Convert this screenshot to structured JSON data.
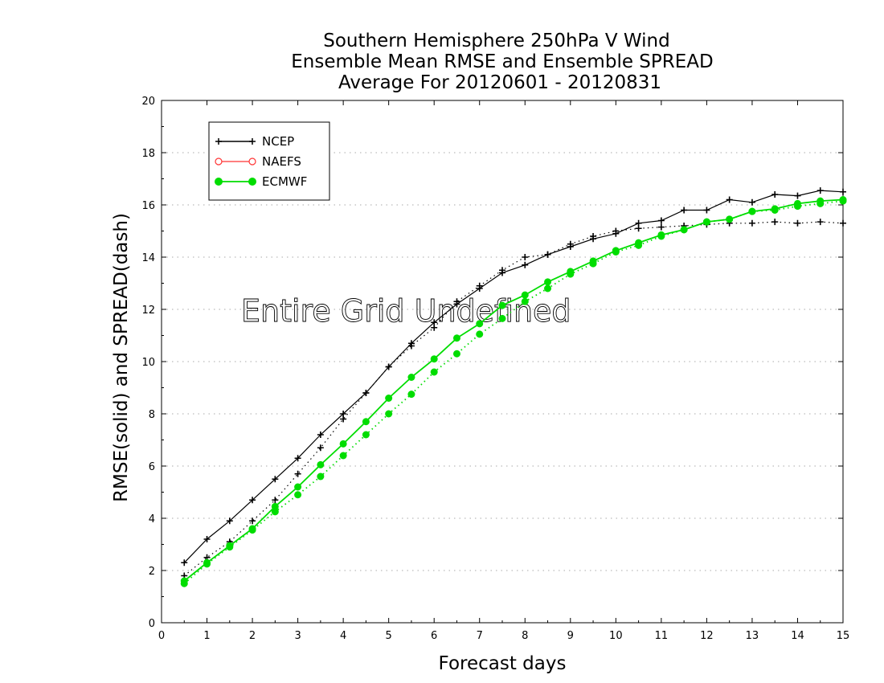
{
  "chart_data": {
    "type": "line",
    "title": [
      "Southern Hemisphere 250hPa V Wind",
      "Ensemble Mean RMSE and Ensemble SPREAD",
      "Average For 20120601 - 20120831"
    ],
    "xlabel": "Forecast days",
    "ylabel": "RMSE(solid) and SPREAD(dash)",
    "xlim": [
      0,
      15
    ],
    "ylim": [
      0,
      20
    ],
    "xticks": [
      0,
      1,
      2,
      3,
      4,
      5,
      6,
      7,
      8,
      9,
      10,
      11,
      12,
      13,
      14,
      15
    ],
    "yticks": [
      0,
      2,
      4,
      6,
      8,
      10,
      12,
      14,
      16,
      18,
      20
    ],
    "grid": "horizontal dotted",
    "legend_position": "top-left",
    "annotation": "Entire Grid Undefined",
    "x": [
      0.5,
      1,
      1.5,
      2,
      2.5,
      3,
      3.5,
      4,
      4.5,
      5,
      5.5,
      6,
      6.5,
      7,
      7.5,
      8,
      8.5,
      9,
      9.5,
      10,
      10.5,
      11,
      11.5,
      12,
      12.5,
      13,
      13.5,
      14,
      14.5,
      15
    ],
    "series": [
      {
        "name": "NCEP",
        "color": "#000000",
        "marker": "plus",
        "rmse": [
          2.3,
          3.2,
          3.9,
          4.7,
          5.5,
          6.3,
          7.2,
          8.0,
          8.8,
          9.8,
          10.7,
          11.5,
          12.2,
          12.8,
          13.4,
          13.7,
          14.1,
          14.4,
          14.7,
          14.9,
          15.3,
          15.4,
          15.8,
          15.8,
          16.2,
          16.1,
          16.4,
          16.35,
          16.55,
          16.5
        ],
        "spread": [
          1.8,
          2.5,
          3.1,
          3.9,
          4.7,
          5.7,
          6.7,
          7.8,
          8.8,
          9.8,
          10.6,
          11.3,
          12.3,
          12.9,
          13.5,
          14.0,
          14.1,
          14.5,
          14.8,
          15.0,
          15.1,
          15.15,
          15.2,
          15.25,
          15.3,
          15.3,
          15.35,
          15.3,
          15.35,
          15.3
        ]
      },
      {
        "name": "NAEFS",
        "color": "#ff3333",
        "marker": "open-circle",
        "rmse": [],
        "spread": []
      },
      {
        "name": "ECMWF",
        "color": "#00dd00",
        "marker": "filled-circle",
        "rmse": [
          1.6,
          2.3,
          2.95,
          3.6,
          4.45,
          5.2,
          6.05,
          6.85,
          7.7,
          8.6,
          9.4,
          10.1,
          10.9,
          11.45,
          12.15,
          12.55,
          13.05,
          13.45,
          13.85,
          14.25,
          14.55,
          14.85,
          15.05,
          15.35,
          15.45,
          15.75,
          15.85,
          16.05,
          16.15,
          16.2
        ],
        "spread": [
          1.5,
          2.25,
          2.9,
          3.55,
          4.25,
          4.9,
          5.6,
          6.4,
          7.2,
          8.0,
          8.75,
          9.6,
          10.3,
          11.05,
          11.65,
          12.3,
          12.8,
          13.35,
          13.75,
          14.2,
          14.45,
          14.8,
          15.05,
          15.35,
          15.45,
          15.75,
          15.8,
          15.95,
          16.05,
          16.15
        ]
      }
    ]
  }
}
